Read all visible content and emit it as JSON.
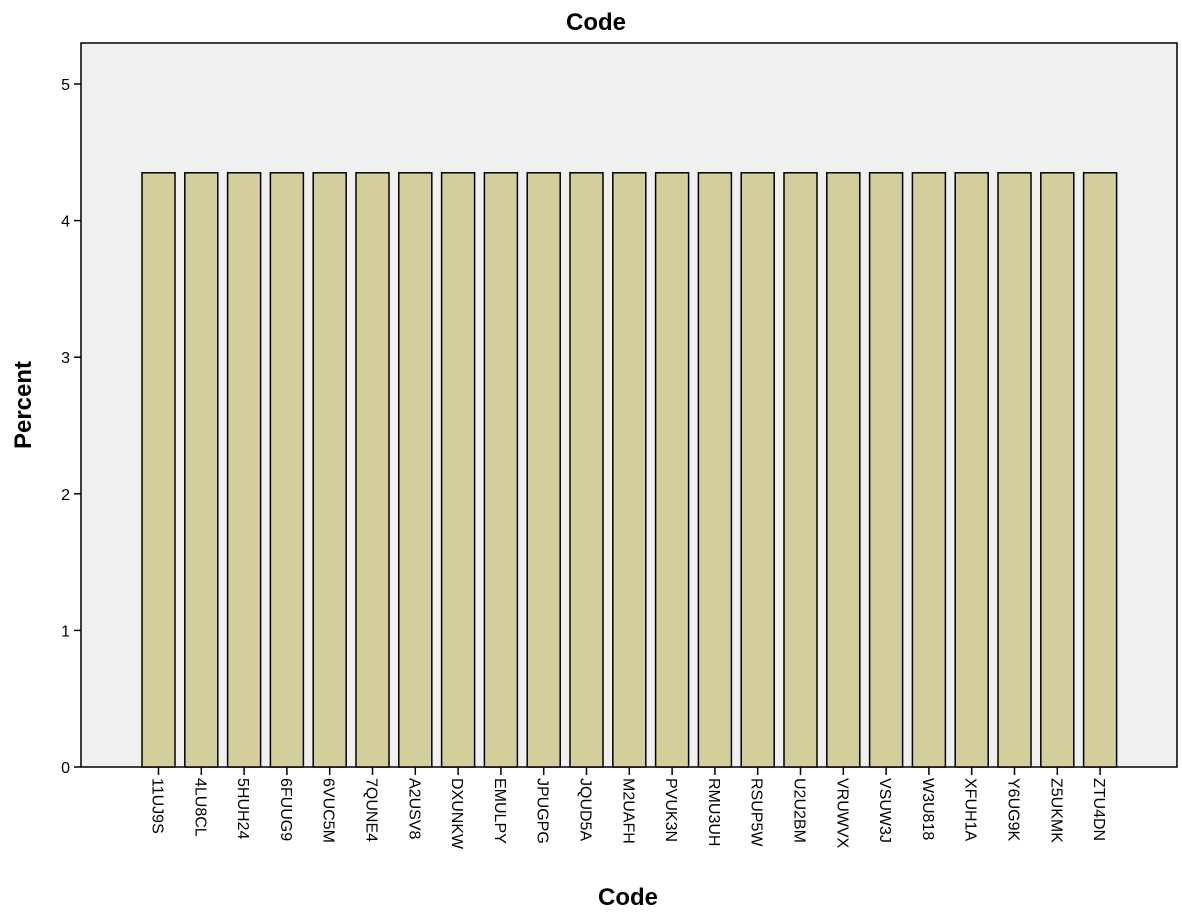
{
  "chart_data": {
    "type": "bar",
    "title": "Code",
    "xlabel": "Code",
    "ylabel": "Percent",
    "ylim": [
      0,
      5.2
    ],
    "yticks": [
      0,
      1,
      2,
      3,
      4,
      5
    ],
    "grid": false,
    "categories": [
      "11UJ9S",
      "4LU8CL",
      "5HUH24",
      "6FUUG9",
      "6VUC5M",
      "7QUNE4",
      "A2USV8",
      "DXUNKW",
      "EMULPY",
      "JPUGPG",
      "JQUD5A",
      "M2UAFH",
      "PVUK3N",
      "RMU3UH",
      "RSUP5W",
      "U2U2BM",
      "VRUWVX",
      "VSUW3J",
      "W3U818",
      "XFUH1A",
      "Y6UG9K",
      "Z5UKMK",
      "ZTU4DN"
    ],
    "values": [
      4.35,
      4.35,
      4.35,
      4.35,
      4.35,
      4.35,
      4.35,
      4.35,
      4.35,
      4.35,
      4.35,
      4.35,
      4.35,
      4.35,
      4.35,
      4.35,
      4.35,
      4.35,
      4.35,
      4.35,
      4.35,
      4.35,
      4.35
    ],
    "colors": {
      "bar_fill": "#d3ce9b",
      "bar_stroke": "#000000",
      "plot_bg": "#f0f0f0"
    }
  }
}
